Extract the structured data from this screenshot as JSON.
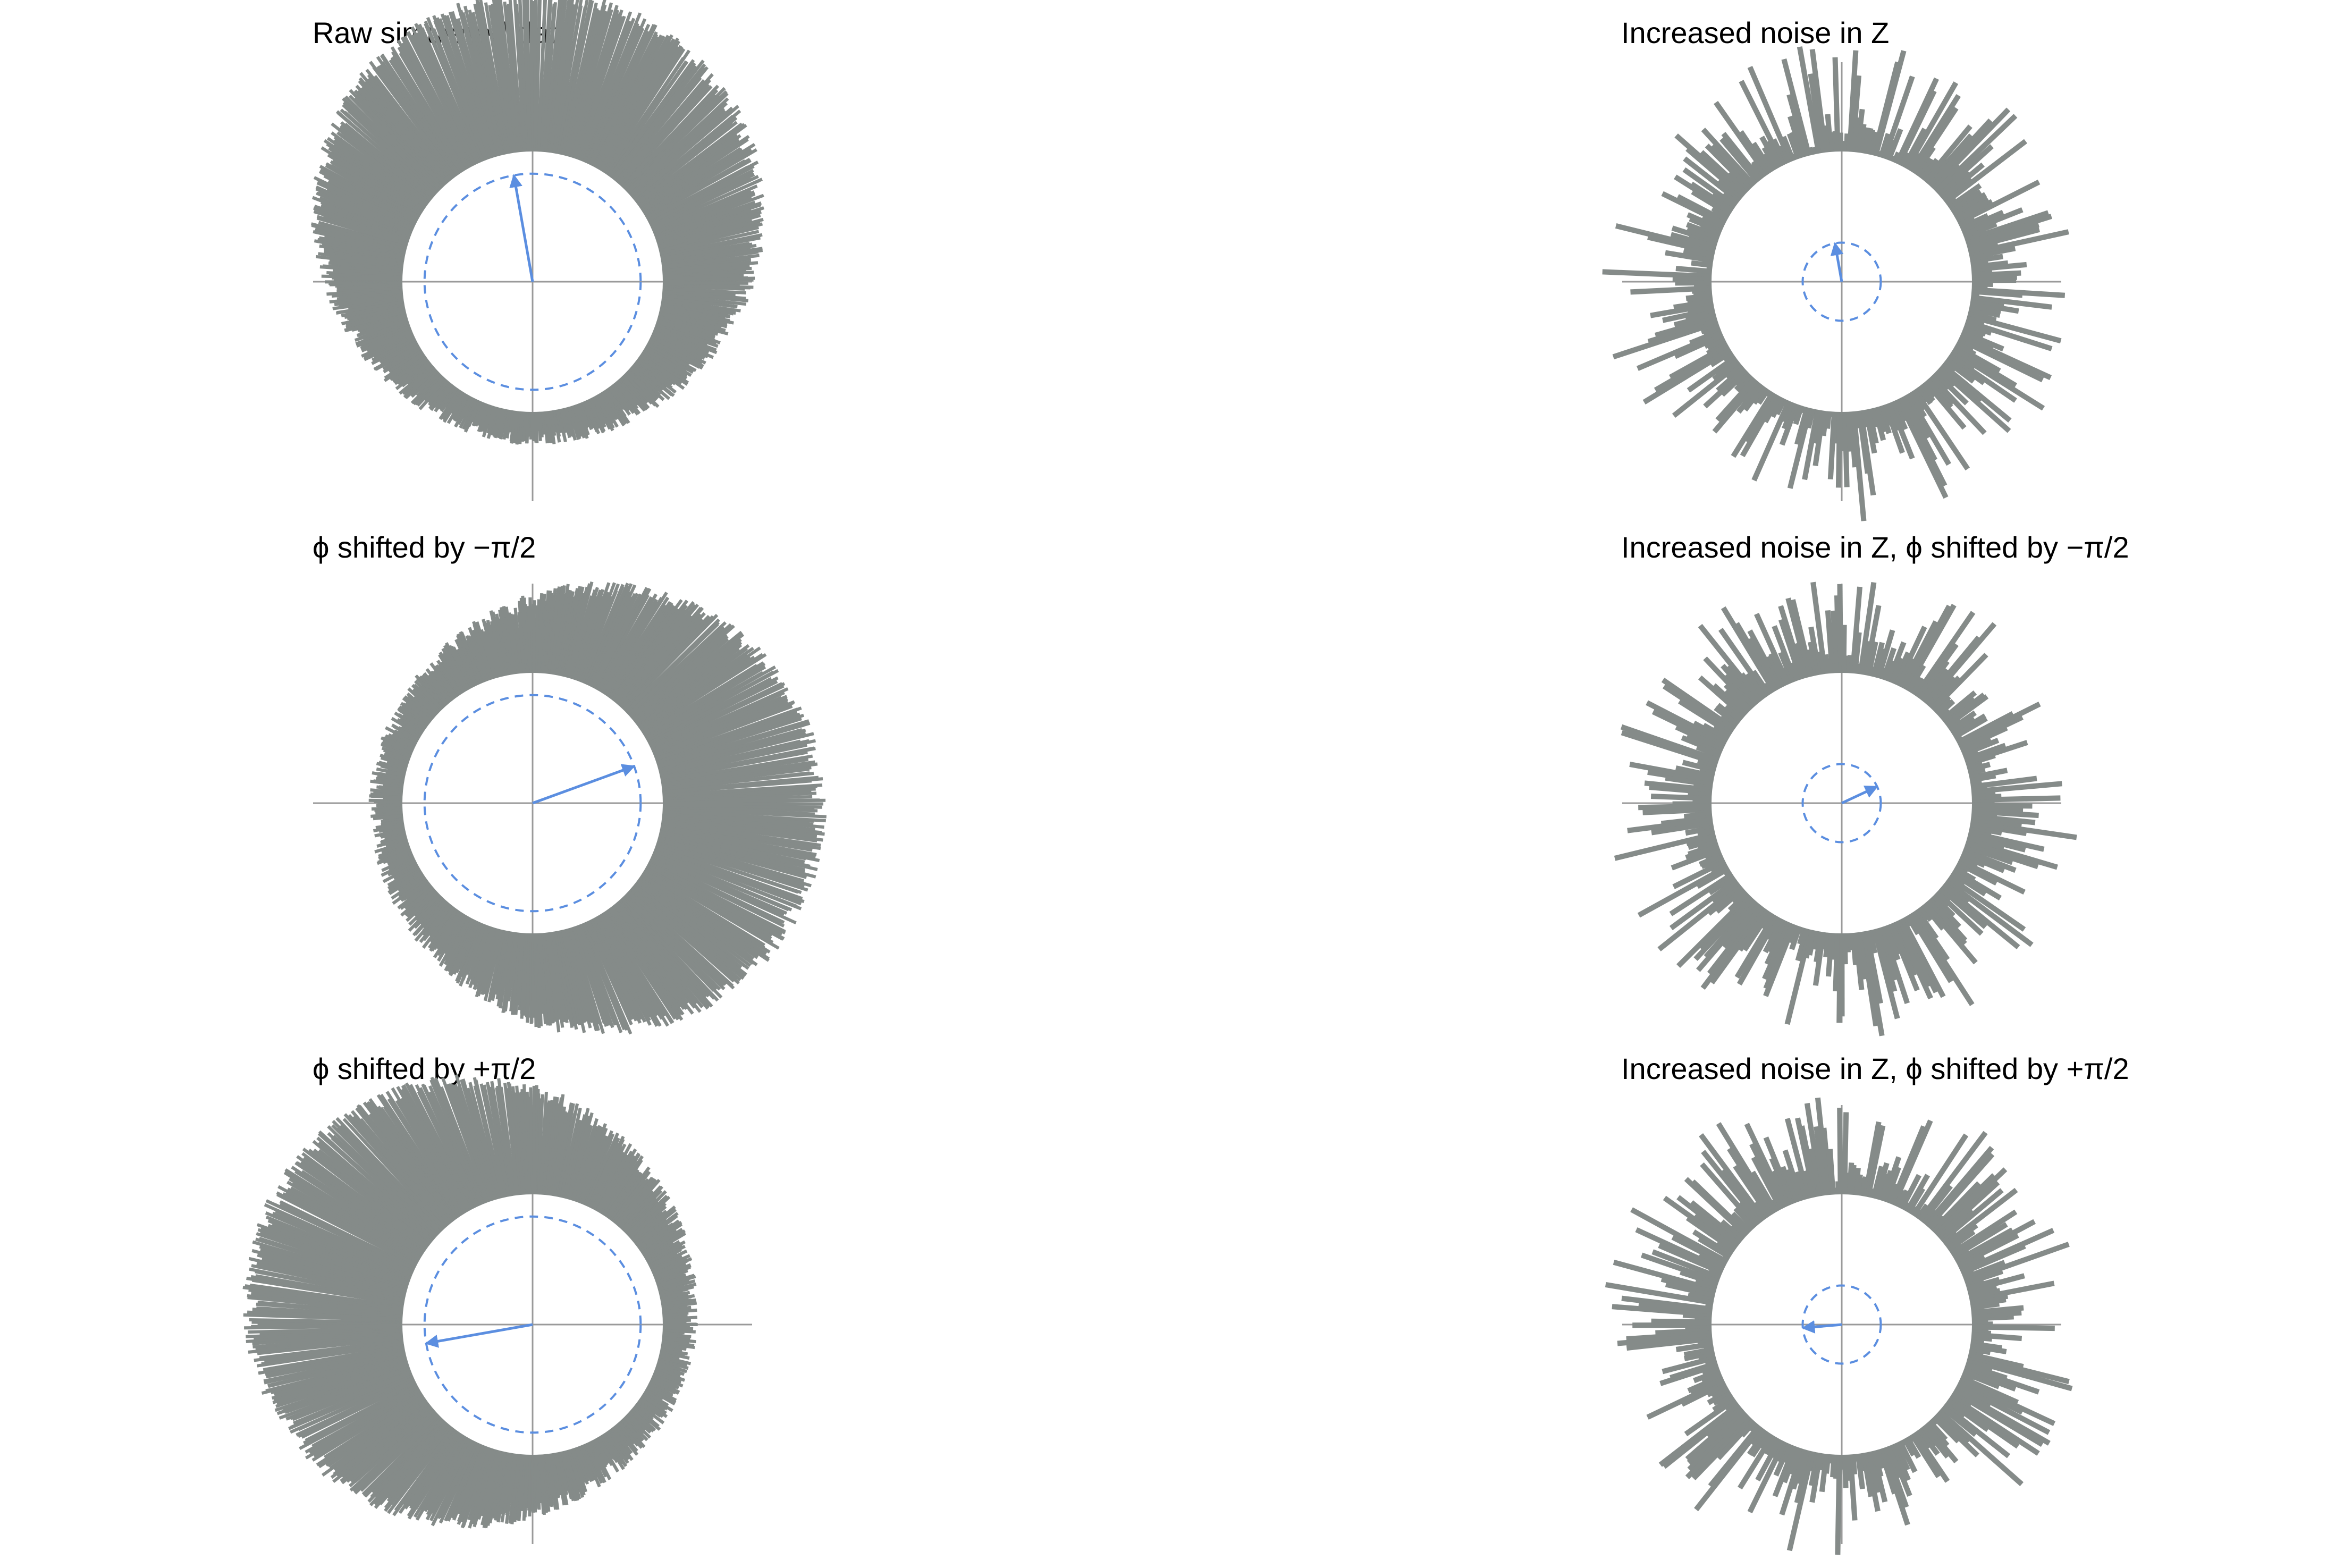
{
  "colors": {
    "spike": "#858b89",
    "axis": "#9a9a9a",
    "vector": "#5b8ee0",
    "background": "#ffffff"
  },
  "chart_data": [
    {
      "type": "polar-spike",
      "title": "Raw simulated data",
      "noise": "low",
      "inner_radius": 1.0,
      "spike_extent_range": [
        1.2,
        2.2
      ],
      "bias_direction_deg": 85,
      "mean_vector": {
        "angle_deg": 100,
        "length": 0.83
      },
      "reference_circle_radius": 0.83,
      "axes": true,
      "grid": false,
      "legend": "none"
    },
    {
      "type": "polar-spike",
      "title": "Increased noise in Z",
      "noise": "high",
      "inner_radius": 1.0,
      "spike_extent_range": [
        1.0,
        1.85
      ],
      "bias_direction_deg": null,
      "mean_vector": {
        "angle_deg": 100,
        "length": 0.3
      },
      "reference_circle_radius": 0.3,
      "axes": true,
      "grid": false,
      "legend": "none"
    },
    {
      "type": "polar-spike",
      "title": "ϕ shifted by −π/2",
      "noise": "low",
      "inner_radius": 1.0,
      "spike_extent_range": [
        1.2,
        2.2
      ],
      "bias_direction_deg": -5,
      "mean_vector": {
        "angle_deg": 20,
        "length": 0.83
      },
      "reference_circle_radius": 0.83,
      "axes": true,
      "grid": false,
      "legend": "none"
    },
    {
      "type": "polar-spike",
      "title": "Increased noise in Z, ϕ shifted by −π/2",
      "noise": "high",
      "inner_radius": 1.0,
      "spike_extent_range": [
        1.0,
        1.85
      ],
      "bias_direction_deg": null,
      "mean_vector": {
        "angle_deg": 25,
        "length": 0.3
      },
      "reference_circle_radius": 0.3,
      "axes": true,
      "grid": false,
      "legend": "none"
    },
    {
      "type": "polar-spike",
      "title": "ϕ shifted by +π/2",
      "noise": "low",
      "inner_radius": 1.0,
      "spike_extent_range": [
        1.2,
        2.2
      ],
      "bias_direction_deg": 160,
      "mean_vector": {
        "angle_deg": 190,
        "length": 0.83
      },
      "reference_circle_radius": 0.83,
      "axes": true,
      "grid": false,
      "legend": "none"
    },
    {
      "type": "polar-spike",
      "title": "Increased noise in Z, ϕ shifted by +π/2",
      "noise": "high",
      "inner_radius": 1.0,
      "spike_extent_range": [
        1.0,
        1.85
      ],
      "bias_direction_deg": null,
      "mean_vector": {
        "angle_deg": 185,
        "length": 0.3
      },
      "reference_circle_radius": 0.3,
      "axes": true,
      "grid": false,
      "legend": "none"
    }
  ]
}
